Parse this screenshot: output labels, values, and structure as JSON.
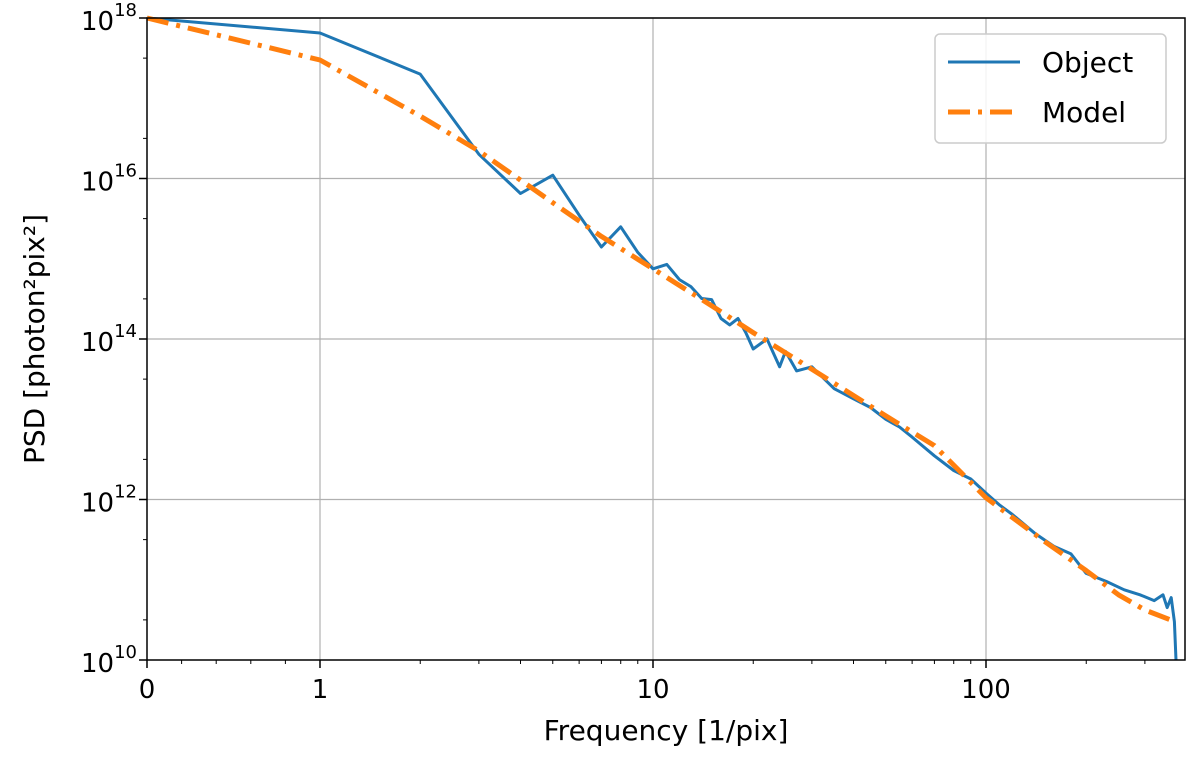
{
  "chart_data": {
    "type": "line",
    "xlabel": "Frequency [1/pix]",
    "ylabel": "PSD [photon²pix²]",
    "xscale": "symlog",
    "yscale": "log",
    "xlim": [
      0,
      420
    ],
    "ylim": [
      10000000000.0,
      1e+18
    ],
    "grid": true,
    "legend_position": "top-right",
    "x_ticks": [
      {
        "value": 0,
        "label": "0"
      },
      {
        "value": 1,
        "label": "1"
      },
      {
        "value": 10,
        "label": "10"
      },
      {
        "value": 100,
        "label": "100"
      }
    ],
    "y_ticks": [
      {
        "value": 10000000000.0,
        "base": "10",
        "exp": "10"
      },
      {
        "value": 1000000000000.0,
        "base": "10",
        "exp": "12"
      },
      {
        "value": 100000000000000.0,
        "base": "10",
        "exp": "14"
      },
      {
        "value": 1e+16,
        "base": "10",
        "exp": "16"
      },
      {
        "value": 1e+18,
        "base": "10",
        "exp": "18"
      }
    ],
    "series": [
      {
        "name": "Object",
        "color": "#1f77b4",
        "style": "solid",
        "points": [
          [
            0,
            1e+18
          ],
          [
            1,
            6.5e+17
          ],
          [
            2,
            2e+17
          ],
          [
            3,
            2e+16
          ],
          [
            4,
            6500000000000000.0
          ],
          [
            5,
            1.1e+16
          ],
          [
            6,
            3500000000000000.0
          ],
          [
            7,
            1400000000000000.0
          ],
          [
            8,
            2500000000000000.0
          ],
          [
            9,
            1200000000000000.0
          ],
          [
            10,
            750000000000000.0
          ],
          [
            11,
            850000000000000.0
          ],
          [
            12,
            550000000000000.0
          ],
          [
            13,
            450000000000000.0
          ],
          [
            14,
            320000000000000.0
          ],
          [
            15,
            310000000000000.0
          ],
          [
            16,
            180000000000000.0
          ],
          [
            17,
            150000000000000.0
          ],
          [
            18,
            180000000000000.0
          ],
          [
            19,
            120000000000000.0
          ],
          [
            20,
            75000000000000.0
          ],
          [
            22,
            100000000000000.0
          ],
          [
            24,
            45000000000000.0
          ],
          [
            25,
            70000000000000.0
          ],
          [
            27,
            40000000000000.0
          ],
          [
            30,
            45000000000000.0
          ],
          [
            35,
            24000000000000.0
          ],
          [
            40,
            18000000000000.0
          ],
          [
            45,
            14000000000000.0
          ],
          [
            50,
            10000000000000.0
          ],
          [
            55,
            8000000000000.0
          ],
          [
            60,
            6000000000000.0
          ],
          [
            70,
            3500000000000.0
          ],
          [
            80,
            2300000000000.0
          ],
          [
            90,
            1800000000000.0
          ],
          [
            100,
            1200000000000.0
          ],
          [
            110,
            850000000000.0
          ],
          [
            120,
            650000000000.0
          ],
          [
            140,
            380000000000.0
          ],
          [
            160,
            260000000000.0
          ],
          [
            180,
            210000000000.0
          ],
          [
            200,
            120000000000.0
          ],
          [
            230,
            95000000000.0
          ],
          [
            260,
            75000000000.0
          ],
          [
            290,
            65000000000.0
          ],
          [
            320,
            55000000000.0
          ],
          [
            340,
            65000000000.0
          ],
          [
            350,
            45000000000.0
          ],
          [
            360,
            60000000000.0
          ],
          [
            368,
            30000000000.0
          ],
          [
            372,
            10000000000.0
          ]
        ]
      },
      {
        "name": "Model",
        "color": "#ff7f0e",
        "style": "dashdot",
        "points": [
          [
            0,
            1e+18
          ],
          [
            1,
            3e+17
          ],
          [
            2,
            6e+16
          ],
          [
            3,
            2.2e+16
          ],
          [
            5,
            5000000000000000.0
          ],
          [
            7,
            1900000000000000.0
          ],
          [
            10,
            750000000000000.0
          ],
          [
            15,
            260000000000000.0
          ],
          [
            20,
            120000000000000.0
          ],
          [
            30,
            42000000000000.0
          ],
          [
            50,
            11000000000000.0
          ],
          [
            70,
            4700000000000.0
          ],
          [
            100,
            1050000000000.0
          ],
          [
            150,
            300000000000.0
          ],
          [
            200,
            130000000000.0
          ],
          [
            250,
            65000000000.0
          ],
          [
            300,
            42000000000.0
          ],
          [
            370,
            30000000000.0
          ]
        ]
      }
    ]
  }
}
